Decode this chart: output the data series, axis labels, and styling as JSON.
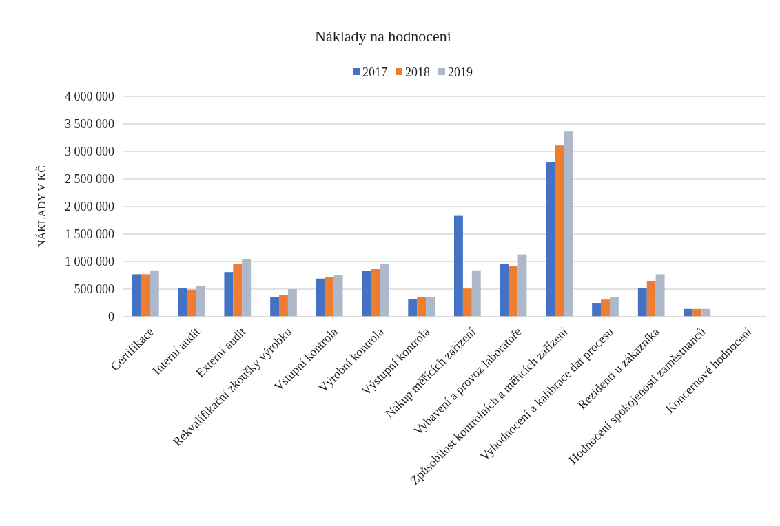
{
  "chart_data": {
    "type": "bar",
    "title": "Náklady na hodnocení",
    "ylabel": "NÁKLADY V KČ",
    "categories": [
      "Certifikace",
      "Interní audit",
      "Externí audit",
      "Rekvalifikační zkoušky výrobku",
      "Vstupní kontrola",
      "Výrobní kontrola",
      "Výstupní kontrola",
      "Nákup měřících zařízení",
      "Vybavení a provoz laboratoře",
      "Způsobilost kontrolních a měřících zařízení",
      "Vyhodnocení a kalibrace dat procesu",
      "Rezidenti u zákazníka",
      "Hodnocení spokojenosti zaměstnanců",
      "Koncernové hodnocení"
    ],
    "series": [
      {
        "name": "2017",
        "color": "#4472c4",
        "values": [
          770000,
          520000,
          810000,
          350000,
          690000,
          830000,
          320000,
          1830000,
          950000,
          2800000,
          250000,
          520000,
          140000,
          0
        ]
      },
      {
        "name": "2018",
        "color": "#ed7d31",
        "values": [
          770000,
          490000,
          950000,
          400000,
          720000,
          870000,
          350000,
          510000,
          920000,
          3110000,
          310000,
          650000,
          140000,
          0
        ]
      },
      {
        "name": "2019",
        "color": "#adb9ca",
        "values": [
          840000,
          550000,
          1050000,
          500000,
          750000,
          950000,
          360000,
          840000,
          1130000,
          3360000,
          350000,
          770000,
          140000,
          0
        ]
      }
    ],
    "ylim": [
      0,
      4000000
    ],
    "yticks": [
      {
        "value": 0,
        "label": "0"
      },
      {
        "value": 500000,
        "label": "500 000"
      },
      {
        "value": 1000000,
        "label": "1 000 000"
      },
      {
        "value": 1500000,
        "label": "1 500 000"
      },
      {
        "value": 2000000,
        "label": "2 000 000"
      },
      {
        "value": 2500000,
        "label": "2 500 000"
      },
      {
        "value": 3000000,
        "label": "3 000 000"
      },
      {
        "value": 3500000,
        "label": "3 500 000"
      },
      {
        "value": 4000000,
        "label": "4 000 000"
      }
    ],
    "grid": true,
    "legend": "top"
  }
}
